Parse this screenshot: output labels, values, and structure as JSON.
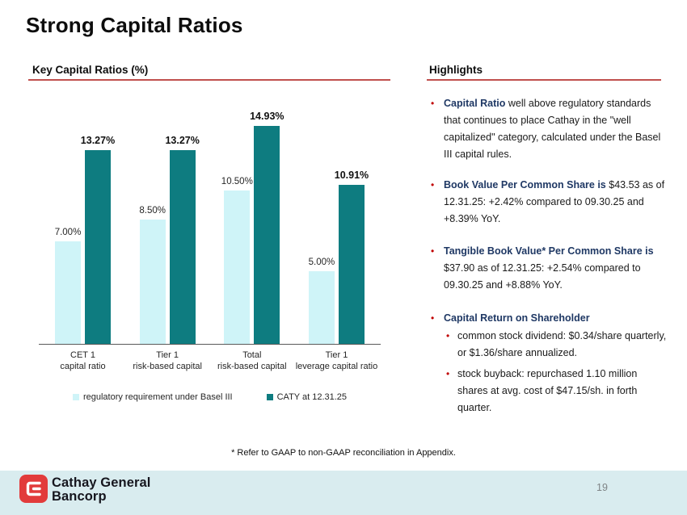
{
  "title": "Strong Capital Ratios",
  "left_section": {
    "header": "Key Capital Ratios (%)"
  },
  "right_section": {
    "header": "Highlights",
    "bullets": [
      {
        "lead": "Capital Ratio",
        "rest": " well above regulatory standards that continues to place Cathay in the \"well capitalized\" category, calculated under the Basel III capital rules."
      },
      {
        "lead": "Book Value Per Common Share is",
        "rest": " $43.53 as of 12.31.25: +2.42% compared to 09.30.25 and +8.39% YoY."
      },
      {
        "lead": "Tangible Book Value* Per Common Share is",
        "rest": " $37.90 as of 12.31.25: +2.54% compared to 09.30.25 and +8.88% YoY."
      },
      {
        "lead": "Capital Return on Shareholder",
        "rest": "",
        "sub_bullets": [
          "common stock dividend: $0.34/share quarterly, or $1.36/share annualized.",
          "stock buyback: repurchased 1.10 million shares at avg. cost of $47.15/sh. in forth quarter."
        ]
      }
    ]
  },
  "chart_data": {
    "type": "bar",
    "title": "Key Capital Ratios (%)",
    "categories": [
      [
        "CET 1",
        "capital ratio"
      ],
      [
        "Tier 1",
        "risk-based capital"
      ],
      [
        "Total",
        "risk-based capital"
      ],
      [
        "Tier 1",
        "leverage capital ratio"
      ]
    ],
    "series": [
      {
        "name": "regulatory requirement under Basel III",
        "color": "#cff4f8",
        "values": [
          7.0,
          8.5,
          10.5,
          5.0
        ],
        "labels": [
          "7.00%",
          "8.50%",
          "10.50%",
          "5.00%"
        ],
        "label_bold": false
      },
      {
        "name": "CATY at 12.31.25",
        "color": "#0e7c80",
        "values": [
          13.27,
          13.27,
          14.93,
          10.91
        ],
        "labels": [
          "13.27%",
          "13.27%",
          "14.93%",
          "10.91%"
        ],
        "label_bold": true
      }
    ],
    "xlabel": "",
    "ylabel": "",
    "ylim": [
      0,
      17.3
    ],
    "grid": false,
    "legend_position": "bottom"
  },
  "footnote": "* Refer to GAAP to non-GAAP reconciliation in Appendix.",
  "footer": {
    "company_line1": "Cathay General",
    "company_line2": "Bancorp",
    "page_number": "19"
  },
  "colors": {
    "accent_red": "#c0504d",
    "teal": "#0e7c80",
    "light_teal": "#cff4f8",
    "navy_bold_text": "#1f3864",
    "bullet_marker_red": "#c00000",
    "footer_bg": "#d9ecef",
    "logo_red": "#e23b3b"
  }
}
